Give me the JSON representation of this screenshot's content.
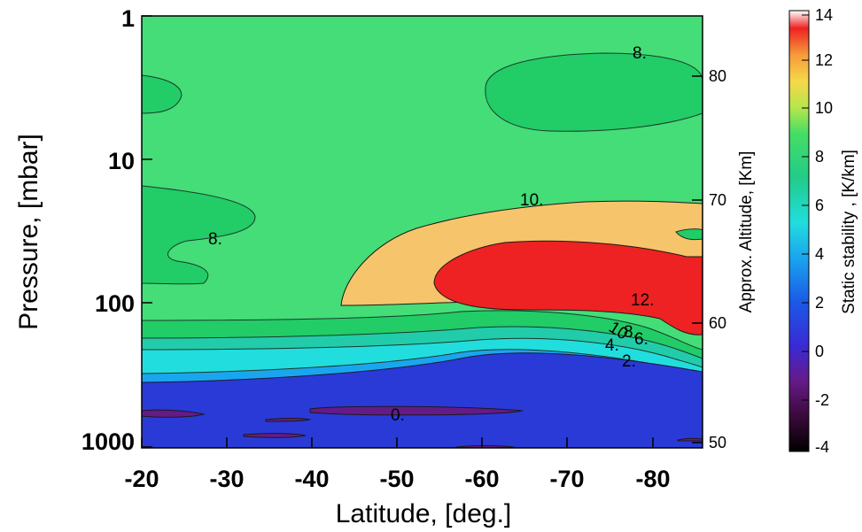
{
  "chart_data": {
    "type": "contour",
    "xlabel": "Latitude, [deg.]",
    "ylabel": "Pressure, [mbar]",
    "y2label": "Approx. Altitude, [Km]",
    "colorbar_label": "Static stability , [K/km]",
    "x_ticks": [
      "-20",
      "-30",
      "-40",
      "-50",
      "-60",
      "-70",
      "-80"
    ],
    "y_ticks": [
      "1",
      "10",
      "100",
      "1000"
    ],
    "y2_ticks": [
      "80",
      "70",
      "60",
      "50"
    ],
    "colorbar_ticks": [
      "14",
      "12",
      "10",
      "8",
      "6",
      "4",
      "2",
      "0",
      "-2",
      "-4"
    ],
    "xlim": [
      -18,
      -85
    ],
    "ylim": [
      1,
      1000
    ],
    "y_scale": "log",
    "colorbar_range": [
      -4,
      14
    ],
    "contour_labels": [
      "8.",
      "8.",
      "10.",
      "12.",
      "10",
      "8.",
      "6.",
      "4.",
      "2.",
      "0."
    ],
    "colors": {
      "red": "#ee2222",
      "orange": "#f6c46a",
      "green_light": "#44dd77",
      "green": "#22cc66",
      "teal": "#22ccaa",
      "cyan": "#22dddd",
      "blue_mid": "#1188ee",
      "blue": "#2a3ad6",
      "purple": "#661a88"
    }
  }
}
